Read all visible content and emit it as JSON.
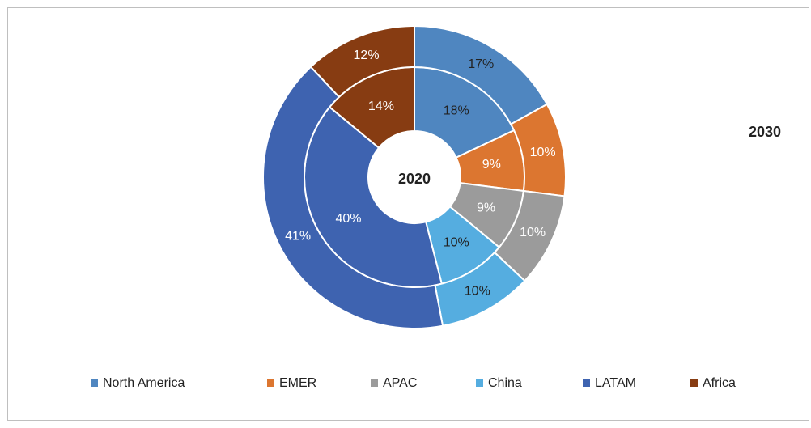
{
  "chart_data": {
    "type": "doughnut",
    "categories": [
      "North America",
      "EMER",
      "APAC",
      "China",
      "LATAM",
      "Africa"
    ],
    "colors": [
      "#4f86c0",
      "#dc7630",
      "#9b9b9b",
      "#55ade0",
      "#3e63b0",
      "#873c12"
    ],
    "series": [
      {
        "name": "2020",
        "values": [
          18,
          9,
          9,
          10,
          40,
          14
        ],
        "value_labels": [
          "18%",
          "9%",
          "9%",
          "10%",
          "40%",
          "14%"
        ]
      },
      {
        "name": "2030",
        "values": [
          17,
          10,
          10,
          10,
          41,
          12
        ],
        "value_labels": [
          "17%",
          "10%",
          "10%",
          "10%",
          "41%",
          "12%"
        ]
      }
    ],
    "legend": "bottom"
  }
}
